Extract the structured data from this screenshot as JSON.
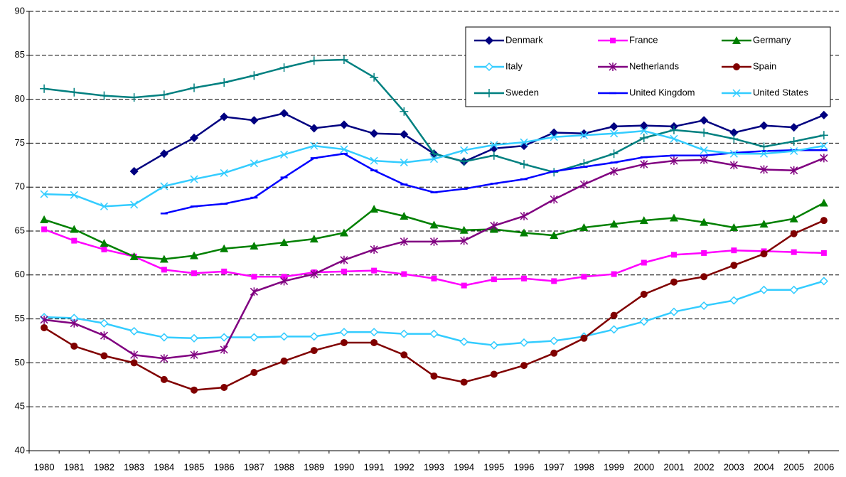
{
  "chart_data": {
    "type": "line",
    "categories": [
      "1980",
      "1981",
      "1982",
      "1983",
      "1984",
      "1985",
      "1986",
      "1987",
      "1988",
      "1989",
      "1990",
      "1991",
      "1992",
      "1993",
      "1994",
      "1995",
      "1996",
      "1997",
      "1998",
      "1999",
      "2000",
      "2001",
      "2002",
      "2003",
      "2004",
      "2005",
      "2006"
    ],
    "series": [
      {
        "name": "Denmark",
        "color": "#000080",
        "marker": "diamond",
        "values": [
          null,
          null,
          null,
          71.8,
          73.8,
          75.6,
          78.0,
          77.6,
          78.4,
          76.7,
          77.1,
          76.1,
          76.0,
          73.8,
          72.9,
          74.4,
          74.7,
          76.2,
          76.1,
          76.9,
          77.0,
          76.9,
          77.6,
          76.2,
          77.0,
          76.8,
          78.2
        ]
      },
      {
        "name": "France",
        "color": "#ff00ff",
        "marker": "square",
        "values": [
          65.2,
          63.9,
          62.9,
          62.1,
          60.6,
          60.2,
          60.4,
          59.8,
          59.8,
          60.3,
          60.4,
          60.5,
          60.1,
          59.6,
          58.8,
          59.5,
          59.6,
          59.3,
          59.8,
          60.1,
          61.4,
          62.3,
          62.5,
          62.8,
          62.7,
          62.6,
          62.5
        ]
      },
      {
        "name": "Germany",
        "color": "#008000",
        "marker": "triangle",
        "values": [
          66.3,
          65.2,
          63.6,
          62.1,
          61.8,
          62.2,
          63.0,
          63.3,
          63.7,
          64.1,
          64.8,
          67.5,
          66.7,
          65.7,
          65.1,
          65.2,
          64.8,
          64.5,
          65.4,
          65.8,
          66.2,
          66.5,
          66.0,
          65.4,
          65.8,
          66.4,
          68.2
        ]
      },
      {
        "name": "Italy",
        "color": "#33ccff",
        "marker": "diamond-open",
        "values": [
          55.2,
          55.1,
          54.5,
          53.6,
          52.9,
          52.8,
          52.9,
          52.9,
          53.0,
          53.0,
          53.5,
          53.5,
          53.3,
          53.3,
          52.4,
          52.0,
          52.3,
          52.5,
          53.0,
          53.8,
          54.7,
          55.8,
          56.5,
          57.1,
          58.3,
          58.3,
          59.3
        ]
      },
      {
        "name": "Netherlands",
        "color": "#800080",
        "marker": "star",
        "values": [
          54.9,
          54.5,
          53.1,
          50.9,
          50.5,
          50.9,
          51.5,
          58.1,
          59.3,
          60.1,
          61.7,
          62.9,
          63.8,
          63.8,
          63.9,
          65.6,
          66.7,
          68.6,
          70.3,
          71.8,
          72.6,
          73.0,
          73.1,
          72.5,
          72.0,
          71.9,
          73.3
        ]
      },
      {
        "name": "Spain",
        "color": "#800000",
        "marker": "circle",
        "values": [
          54.0,
          51.9,
          50.8,
          50.0,
          48.1,
          46.9,
          47.2,
          48.9,
          50.2,
          51.4,
          52.3,
          52.3,
          50.9,
          48.5,
          47.8,
          48.7,
          49.7,
          51.1,
          52.8,
          55.4,
          57.8,
          59.2,
          59.8,
          61.1,
          62.4,
          64.7,
          66.2
        ]
      },
      {
        "name": "Sweden",
        "color": "#008080",
        "marker": "plus",
        "values": [
          81.2,
          80.8,
          80.4,
          80.2,
          80.5,
          81.3,
          81.9,
          82.7,
          83.6,
          84.4,
          84.5,
          82.5,
          78.6,
          73.8,
          72.9,
          73.6,
          72.6,
          71.7,
          72.7,
          73.8,
          75.6,
          76.5,
          76.2,
          75.5,
          74.6,
          75.2,
          75.9
        ]
      },
      {
        "name": "United Kingdom",
        "color": "#0000ff",
        "marker": "dash",
        "values": [
          null,
          null,
          null,
          null,
          67.0,
          67.8,
          68.1,
          68.8,
          71.1,
          73.3,
          73.8,
          71.9,
          70.3,
          69.4,
          69.8,
          70.4,
          70.9,
          71.8,
          72.3,
          72.8,
          73.4,
          73.6,
          73.6,
          73.9,
          74.1,
          74.2,
          74.2
        ]
      },
      {
        "name": "United States",
        "color": "#33ccff",
        "marker": "x",
        "values": [
          69.2,
          69.1,
          67.8,
          68.0,
          70.1,
          70.9,
          71.6,
          72.7,
          73.7,
          74.7,
          74.3,
          73.0,
          72.8,
          73.2,
          74.2,
          74.8,
          75.1,
          75.7,
          75.9,
          76.1,
          76.4,
          75.5,
          74.2,
          73.8,
          73.8,
          74.1,
          74.7
        ]
      }
    ],
    "ylim": [
      40,
      90
    ],
    "yticks": [
      40,
      45,
      50,
      55,
      60,
      65,
      70,
      75,
      80,
      85,
      90
    ],
    "grid": true
  }
}
